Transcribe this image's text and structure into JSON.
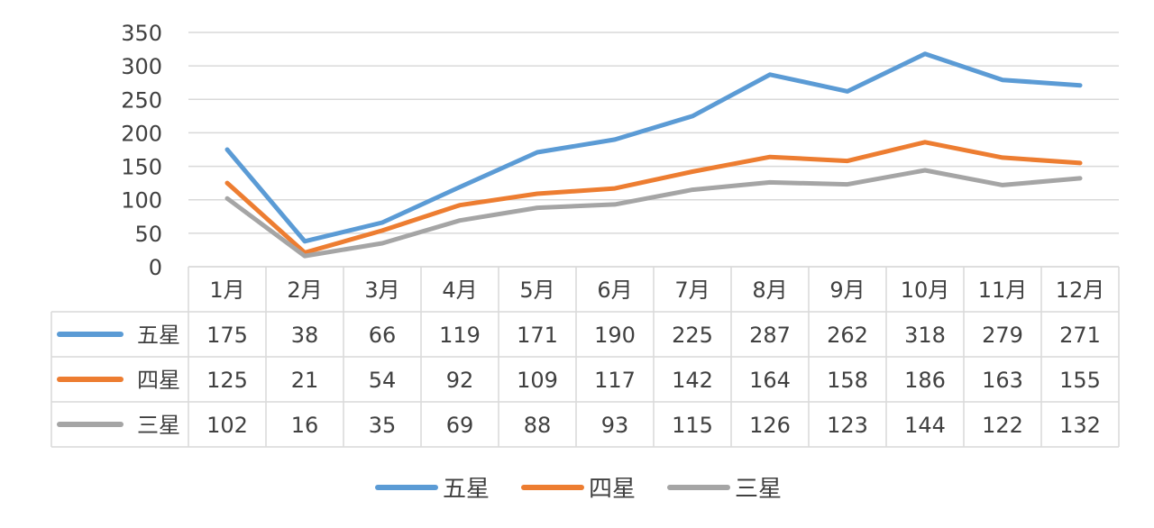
{
  "chart_data": {
    "type": "line",
    "title": "",
    "xlabel": "",
    "ylabel": "",
    "ylim": [
      0,
      350
    ],
    "yticks": [
      0,
      50,
      100,
      150,
      200,
      250,
      300,
      350
    ],
    "categories": [
      "1月",
      "2月",
      "3月",
      "4月",
      "5月",
      "6月",
      "7月",
      "8月",
      "9月",
      "10月",
      "11月",
      "12月"
    ],
    "series": [
      {
        "name": "五星",
        "color": "#5B9BD5",
        "values": [
          175,
          38,
          66,
          119,
          171,
          190,
          225,
          287,
          262,
          318,
          279,
          271
        ]
      },
      {
        "name": "四星",
        "color": "#ED7D31",
        "values": [
          125,
          21,
          54,
          92,
          109,
          117,
          142,
          164,
          158,
          186,
          163,
          155
        ]
      },
      {
        "name": "三星",
        "color": "#A5A5A5",
        "values": [
          102,
          16,
          35,
          69,
          88,
          93,
          115,
          126,
          123,
          144,
          122,
          132
        ]
      }
    ],
    "grid": true,
    "legend": "bottom",
    "data_table": true
  }
}
